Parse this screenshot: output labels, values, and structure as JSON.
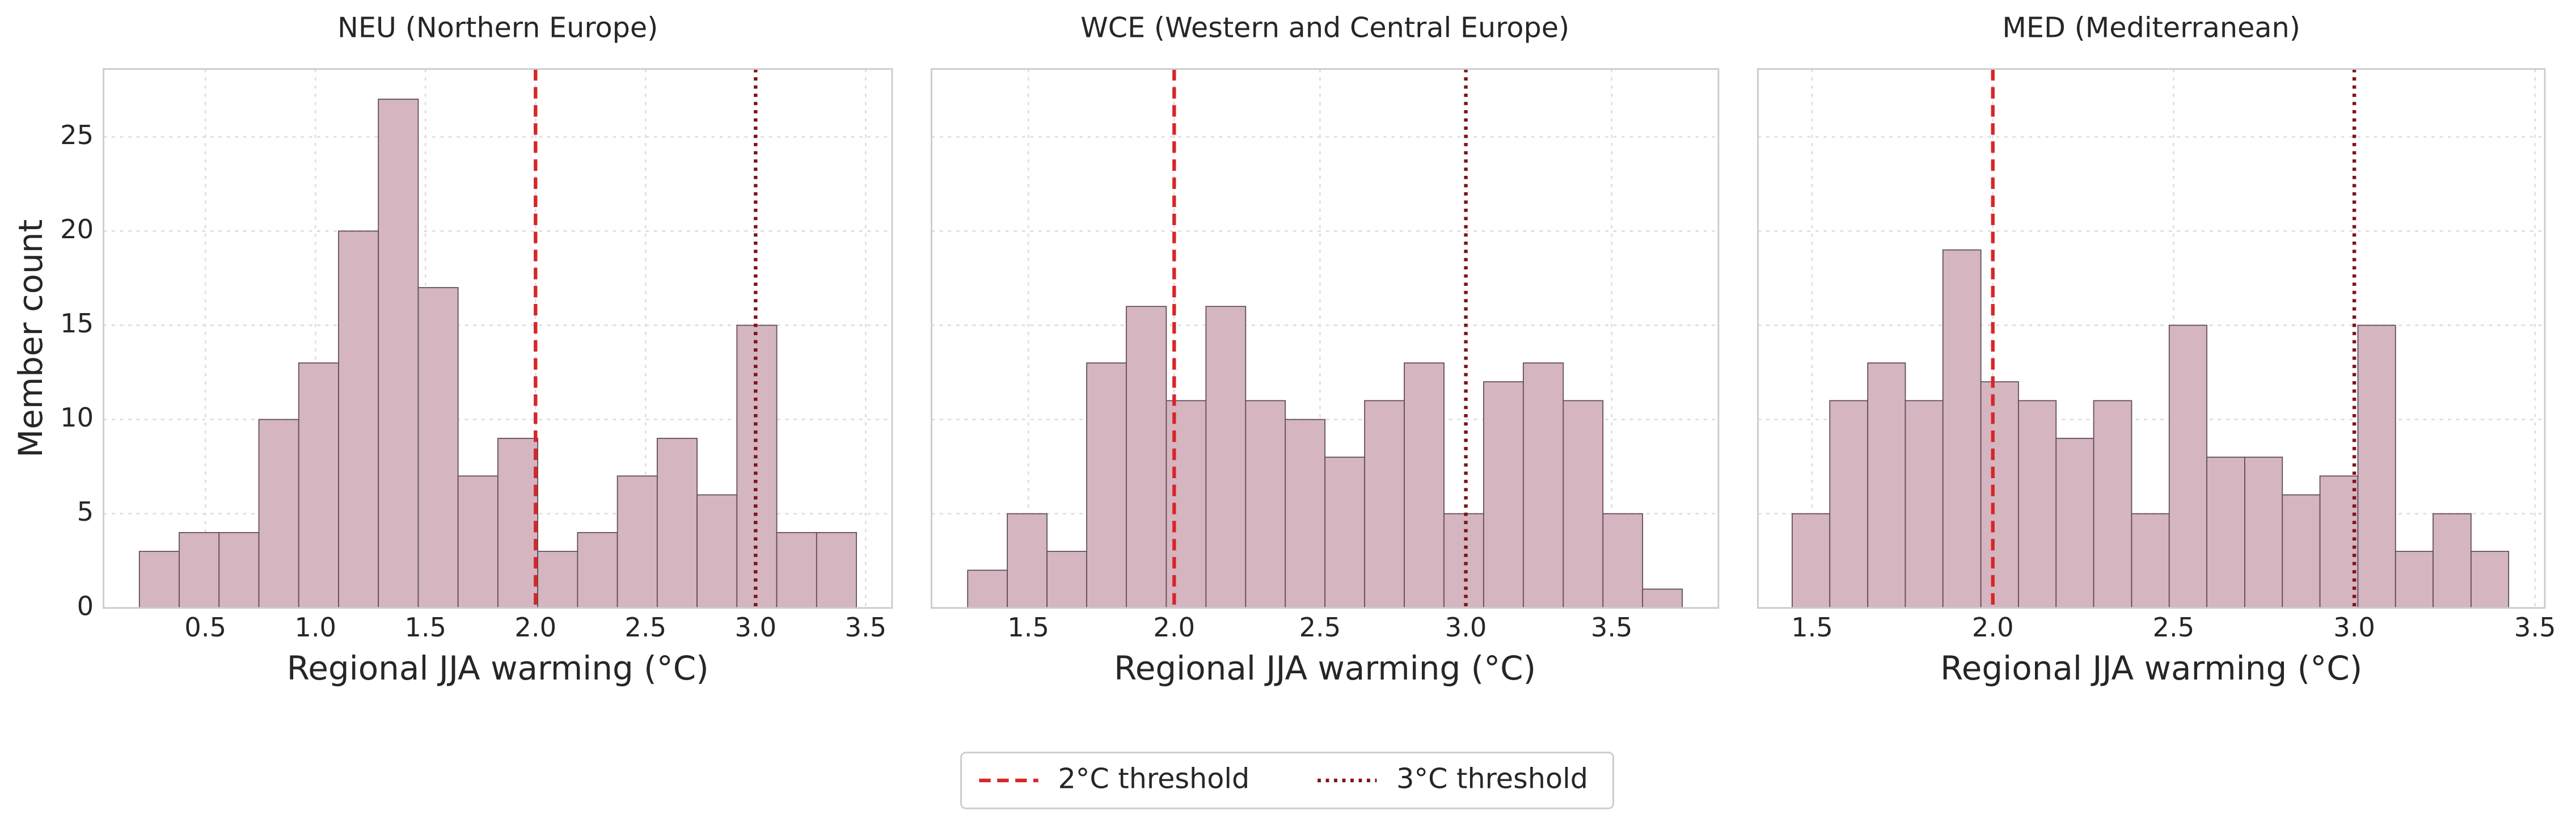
{
  "chart_data": [
    {
      "type": "histogram",
      "title": "NEU (Northern Europe)",
      "xlabel": "Regional JJA warming (°C)",
      "ylabel": "Member count",
      "bins": [
        0.2,
        0.381,
        0.562,
        0.743,
        0.924,
        1.105,
        1.286,
        1.467,
        1.648,
        1.829,
        2.01,
        2.191,
        2.372,
        2.553,
        2.734,
        2.915,
        3.096,
        3.277,
        3.458
      ],
      "values": [
        3,
        4,
        4,
        10,
        13,
        20,
        27,
        17,
        7,
        9,
        3,
        4,
        7,
        9,
        6,
        15,
        4,
        4
      ],
      "color": "#d4b5c0",
      "edgecolor": "#5e4a5c",
      "xlim": [
        0.037,
        3.62
      ],
      "xticks": [
        0.5,
        {
          "value": 1,
          "label": "1.0"
        },
        1.5,
        {
          "value": 2,
          "label": "2.0"
        },
        2.5,
        {
          "value": 3,
          "label": "3.0"
        },
        3.5
      ],
      "ylim": [
        0,
        28.6
      ],
      "yticks": [
        0,
        5,
        10,
        15,
        20,
        25
      ],
      "grid": true,
      "vlines": [
        2,
        3
      ]
    },
    {
      "type": "histogram",
      "title": "WCE (Western and Central Europe)",
      "xlabel": "Regional JJA warming (°C)",
      "bins": [
        1.292,
        1.428,
        1.564,
        1.7,
        1.836,
        1.973,
        2.109,
        2.245,
        2.381,
        2.517,
        2.653,
        2.789,
        2.925,
        3.061,
        3.197,
        3.334,
        3.47,
        3.606,
        3.742
      ],
      "values": [
        2,
        5,
        3,
        13,
        16,
        11,
        16,
        11,
        10,
        8,
        11,
        13,
        5,
        12,
        13,
        11,
        5,
        1
      ],
      "color": "#d4b5c0",
      "edgecolor": "#5e4a5c",
      "xlim": [
        1.168,
        3.866
      ],
      "xticks": [
        1.5,
        {
          "value": 2,
          "label": "2.0"
        },
        2.5,
        {
          "value": 3,
          "label": "3.0"
        },
        3.5
      ],
      "ylim": [
        0,
        28.6
      ],
      "grid": true,
      "vlines": [
        2,
        3
      ]
    },
    {
      "type": "histogram",
      "title": "MED (Mediterranean)",
      "xlabel": "Regional JJA warming (°C)",
      "bins": [
        1.445,
        1.549,
        1.654,
        1.758,
        1.862,
        1.967,
        2.071,
        2.175,
        2.279,
        2.384,
        2.488,
        2.592,
        2.697,
        2.801,
        2.905,
        3.01,
        3.114,
        3.218,
        3.323,
        3.427
      ],
      "values": [
        5,
        11,
        13,
        11,
        19,
        12,
        11,
        9,
        11,
        5,
        15,
        8,
        8,
        6,
        7,
        15,
        3,
        5,
        3
      ],
      "color": "#d4b5c0",
      "edgecolor": "#5e4a5c",
      "xlim": [
        1.35,
        3.527
      ],
      "xticks": [
        1.5,
        {
          "value": 2,
          "label": "2.0"
        },
        2.5,
        {
          "value": 3,
          "label": "3.0"
        },
        3.5
      ],
      "ylim": [
        0,
        28.6
      ],
      "grid": true,
      "vlines": [
        2,
        3
      ]
    }
  ],
  "legend": [
    {
      "label": "2°C threshold",
      "color": "#d62728",
      "style": "dashed"
    },
    {
      "label": "3°C threshold",
      "color": "#7f1416",
      "style": "dotted"
    }
  ]
}
